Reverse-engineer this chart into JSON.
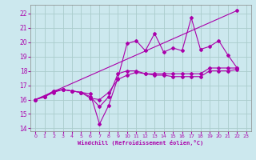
{
  "xlabel": "Windchill (Refroidissement éolien,°C)",
  "xlim": [
    -0.5,
    23.5
  ],
  "ylim": [
    13.8,
    22.6
  ],
  "bg_color": "#cce8ee",
  "line_color": "#aa00aa",
  "grid_color": "#aacccc",
  "series": [
    {
      "x": [
        0,
        1,
        2,
        3,
        4,
        5,
        6,
        7,
        8,
        9,
        10,
        11,
        12,
        13,
        14,
        15,
        16,
        17,
        18,
        19,
        20,
        21,
        22
      ],
      "y": [
        16.0,
        16.2,
        16.6,
        16.7,
        16.6,
        16.5,
        16.4,
        14.3,
        15.6,
        17.5,
        19.9,
        20.1,
        19.4,
        20.6,
        19.3,
        19.6,
        19.4,
        21.7,
        19.5,
        19.7,
        20.1,
        19.1,
        18.2
      ]
    },
    {
      "x": [
        0,
        1,
        2,
        3,
        4,
        5,
        6,
        7,
        8,
        9,
        10,
        11,
        12,
        13,
        14,
        15,
        16,
        17,
        18,
        19,
        20,
        21,
        22
      ],
      "y": [
        16.0,
        16.2,
        16.6,
        16.7,
        16.6,
        16.5,
        16.2,
        15.5,
        16.2,
        17.8,
        18.0,
        18.0,
        17.8,
        17.8,
        17.8,
        17.8,
        17.8,
        17.8,
        17.8,
        18.2,
        18.2,
        18.2,
        18.2
      ]
    },
    {
      "x": [
        0,
        22
      ],
      "y": [
        16.0,
        22.2
      ]
    },
    {
      "x": [
        0,
        1,
        2,
        3,
        4,
        5,
        6,
        7,
        8,
        9,
        10,
        11,
        12,
        13,
        14,
        15,
        16,
        17,
        18,
        19,
        20,
        21,
        22
      ],
      "y": [
        16.0,
        16.2,
        16.5,
        16.7,
        16.6,
        16.5,
        16.1,
        16.0,
        16.5,
        17.4,
        17.7,
        17.9,
        17.8,
        17.7,
        17.7,
        17.6,
        17.6,
        17.6,
        17.6,
        18.0,
        18.0,
        18.0,
        18.1
      ]
    }
  ],
  "xticks": [
    0,
    1,
    2,
    3,
    4,
    5,
    6,
    7,
    8,
    9,
    10,
    11,
    12,
    13,
    14,
    15,
    16,
    17,
    18,
    19,
    20,
    21,
    22,
    23
  ],
  "yticks": [
    14,
    15,
    16,
    17,
    18,
    19,
    20,
    21,
    22
  ]
}
